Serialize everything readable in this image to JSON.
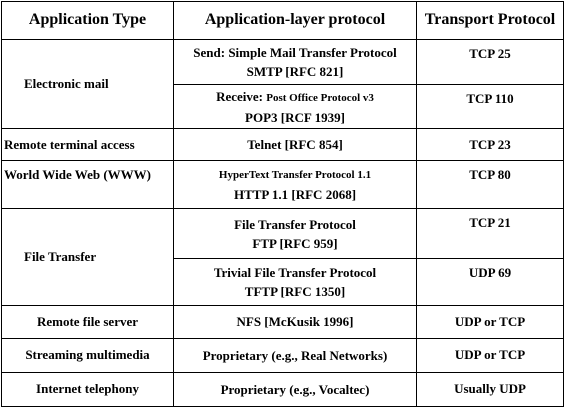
{
  "headers": {
    "app": "Application Type",
    "proto": "Application-layer protocol",
    "transport": "Transport Protocol"
  },
  "rows": {
    "mail": {
      "app": "Electronic mail",
      "send_line1": "Send: Simple Mail Transfer Protocol",
      "send_line2": "SMTP [RFC 821]",
      "send_tp": "TCP  25",
      "recv_prefix": "Receive: ",
      "recv_line1": "Post Office Protocol v3",
      "recv_line2": "POP3 [RCF 1939]",
      "recv_tp": "TCP 110"
    },
    "telnet": {
      "app": "Remote terminal access",
      "proto": "Telnet [RFC 854]",
      "tp": "TCP 23"
    },
    "www": {
      "app": "World Wide Web (WWW)",
      "line1": "HyperText Transfer Protocol 1.1",
      "line2": "HTTP 1.1  [RFC 2068]",
      "tp": "TCP  80"
    },
    "ft": {
      "app": "File Transfer",
      "ftp_line1": "File Transfer Protocol",
      "ftp_line2": "FTP [RFC 959]",
      "ftp_tp": "TCP  21",
      "tftp_line1": "Trivial File Transfer Protocol",
      "tftp_line2": "TFTP [RFC 1350]",
      "tftp_tp": "UDP 69"
    },
    "nfs": {
      "app": "Remote file server",
      "proto": "NFS [McKusik 1996]",
      "tp": "UDP or TCP"
    },
    "stream": {
      "app": "Streaming multimedia",
      "proto": "Proprietary (e.g., Real Networks)",
      "tp": "UDP or TCP"
    },
    "tel": {
      "app": "Internet telephony",
      "proto": "Proprietary (e.g., Vocaltec)",
      "tp": "Usually UDP"
    }
  }
}
